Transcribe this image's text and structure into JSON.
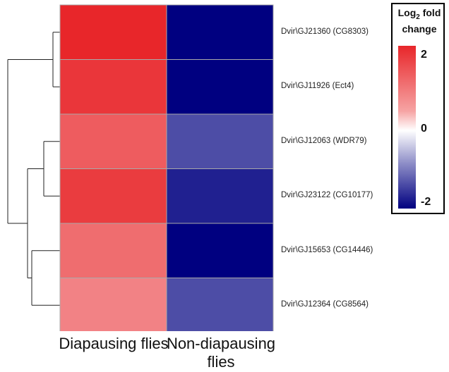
{
  "chart_data": {
    "type": "heatmap",
    "legend_title": {
      "main": "Log",
      "sub": "2",
      "rest": " fold change"
    },
    "color_scale": {
      "min": -2,
      "mid": 0,
      "max": 2,
      "min_color": "#000080",
      "mid_color": "#ffffff",
      "max_color": "#e8262a"
    },
    "legend_ticks": [
      "2",
      "0",
      "-2"
    ],
    "columns": [
      "Diapausing flies",
      "Non-diapausing flies"
    ],
    "rows": [
      {
        "label": "Dvir\\GJ21360 (CG8303)",
        "values": [
          2.0,
          -2.0
        ]
      },
      {
        "label": "Dvir\\GJ11926 (Ect4)",
        "values": [
          1.85,
          -2.0
        ]
      },
      {
        "label": "Dvir\\GJ12063 (WDR79)",
        "values": [
          1.5,
          -1.4
        ]
      },
      {
        "label": "Dvir\\GJ23122 (CG10177)",
        "values": [
          1.8,
          -1.75
        ]
      },
      {
        "label": "Dvir\\GJ15653 (CG14446)",
        "values": [
          1.35,
          -2.0
        ]
      },
      {
        "label": "Dvir\\GJ12364 (CG8564)",
        "values": [
          1.15,
          -1.4
        ]
      }
    ],
    "row_dendrogram": "((GJ21360,GJ11926),((GJ12063,GJ23122),(GJ15653,GJ12364)))"
  }
}
